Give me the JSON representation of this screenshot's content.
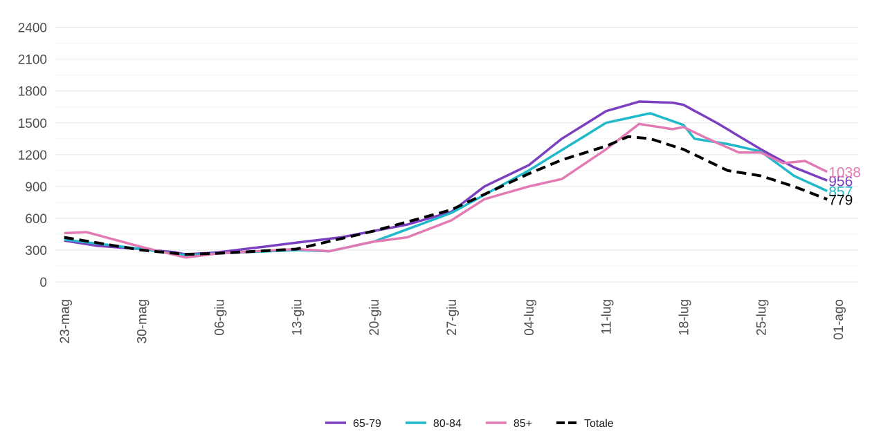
{
  "chart_data": {
    "type": "line",
    "x": [
      0,
      1,
      2,
      3,
      4,
      5,
      6,
      7,
      8,
      9,
      10,
      11,
      12,
      13,
      14,
      15,
      16,
      17,
      18,
      19,
      20,
      21,
      22,
      23,
      24,
      25,
      26,
      27,
      28,
      29,
      30,
      31,
      32,
      33,
      34,
      35,
      36,
      37,
      38,
      39,
      40,
      41,
      42,
      43,
      44,
      45,
      46,
      47,
      48,
      49,
      50,
      51,
      52,
      53,
      54,
      55,
      56,
      57,
      58,
      59,
      60,
      61,
      62,
      63,
      64,
      65,
      66,
      67,
      68,
      69
    ],
    "xlim": [
      -0.8,
      71.8
    ],
    "xticks": [
      {
        "value": 0,
        "label": "23-mag"
      },
      {
        "value": 7,
        "label": "30-mag"
      },
      {
        "value": 14,
        "label": "06-giu"
      },
      {
        "value": 21,
        "label": "13-giu"
      },
      {
        "value": 28,
        "label": "20-giu"
      },
      {
        "value": 35,
        "label": "27-giu"
      },
      {
        "value": 42,
        "label": "04-lug"
      },
      {
        "value": 49,
        "label": "11-lug"
      },
      {
        "value": 56,
        "label": "18-lug"
      },
      {
        "value": 63,
        "label": "25-lug"
      },
      {
        "value": 70,
        "label": "01-ago"
      }
    ],
    "ylim": [
      -110,
      2560
    ],
    "yticks": [
      0,
      300,
      600,
      900,
      1200,
      1500,
      1800,
      2100,
      2400
    ],
    "grid": true,
    "legend": "bottom",
    "series": [
      {
        "name": "65-79",
        "color": "#7b3fc0",
        "values": [
          390,
          373,
          357,
          340,
          333,
          325,
          318,
          310,
          300,
          290,
          280,
          260,
          267,
          273,
          280,
          293,
          306,
          319,
          331,
          344,
          357,
          370,
          383,
          395,
          408,
          420,
          440,
          460,
          480,
          500,
          520,
          540,
          570,
          600,
          630,
          660,
          740,
          820,
          900,
          950,
          1000,
          1050,
          1100,
          1183,
          1267,
          1350,
          1415,
          1480,
          1545,
          1610,
          1640,
          1670,
          1700,
          1697,
          1693,
          1690,
          1670,
          1613,
          1557,
          1500,
          1438,
          1375,
          1313,
          1250,
          1193,
          1137,
          1080,
          1039,
          997,
          956
        ],
        "end_label": "956"
      },
      {
        "name": "80-84",
        "color": "#1fb9c9",
        "values": [
          400,
          387,
          374,
          361,
          349,
          336,
          323,
          310,
          295,
          280,
          265,
          250,
          257,
          263,
          270,
          274,
          279,
          283,
          287,
          291,
          296,
          300,
          297,
          293,
          290,
          313,
          335,
          358,
          380,
          419,
          457,
          496,
          534,
          573,
          611,
          650,
          707,
          764,
          821,
          879,
          936,
          993,
          1050,
          1114,
          1179,
          1243,
          1307,
          1371,
          1436,
          1500,
          1523,
          1545,
          1568,
          1590,
          1553,
          1517,
          1480,
          1350,
          1333,
          1317,
          1300,
          1277,
          1253,
          1230,
          1153,
          1077,
          1000,
          952,
          905,
          857
        ],
        "end_label": "857"
      },
      {
        "name": "85+",
        "color": "#e27bb4",
        "values": [
          460,
          465,
          470,
          442,
          414,
          386,
          358,
          330,
          305,
          280,
          255,
          230,
          243,
          257,
          270,
          276,
          281,
          287,
          293,
          299,
          304,
          310,
          303,
          297,
          290,
          313,
          335,
          358,
          380,
          393,
          407,
          420,
          460,
          500,
          540,
          580,
          647,
          713,
          780,
          810,
          840,
          870,
          900,
          923,
          947,
          970,
          1040,
          1110,
          1180,
          1250,
          1330,
          1410,
          1490,
          1473,
          1457,
          1440,
          1460,
          1410,
          1360,
          1313,
          1267,
          1220,
          1220,
          1220,
          1170,
          1120,
          1130,
          1140,
          1089,
          1038
        ],
        "end_label": "1038"
      },
      {
        "name": "Totale",
        "color": "#000000",
        "dashed": true,
        "values": [
          420,
          403,
          386,
          369,
          351,
          334,
          317,
          300,
          290,
          280,
          270,
          260,
          263,
          267,
          270,
          276,
          281,
          287,
          293,
          299,
          304,
          310,
          334,
          359,
          383,
          407,
          431,
          456,
          480,
          509,
          537,
          566,
          594,
          623,
          651,
          680,
          729,
          777,
          826,
          874,
          923,
          971,
          1020,
          1063,
          1107,
          1150,
          1183,
          1215,
          1248,
          1280,
          1325,
          1370,
          1360,
          1350,
          1317,
          1283,
          1250,
          1200,
          1150,
          1100,
          1050,
          1033,
          1017,
          1000,
          967,
          933,
          900,
          860,
          819,
          779
        ],
        "end_label": "779"
      }
    ]
  }
}
